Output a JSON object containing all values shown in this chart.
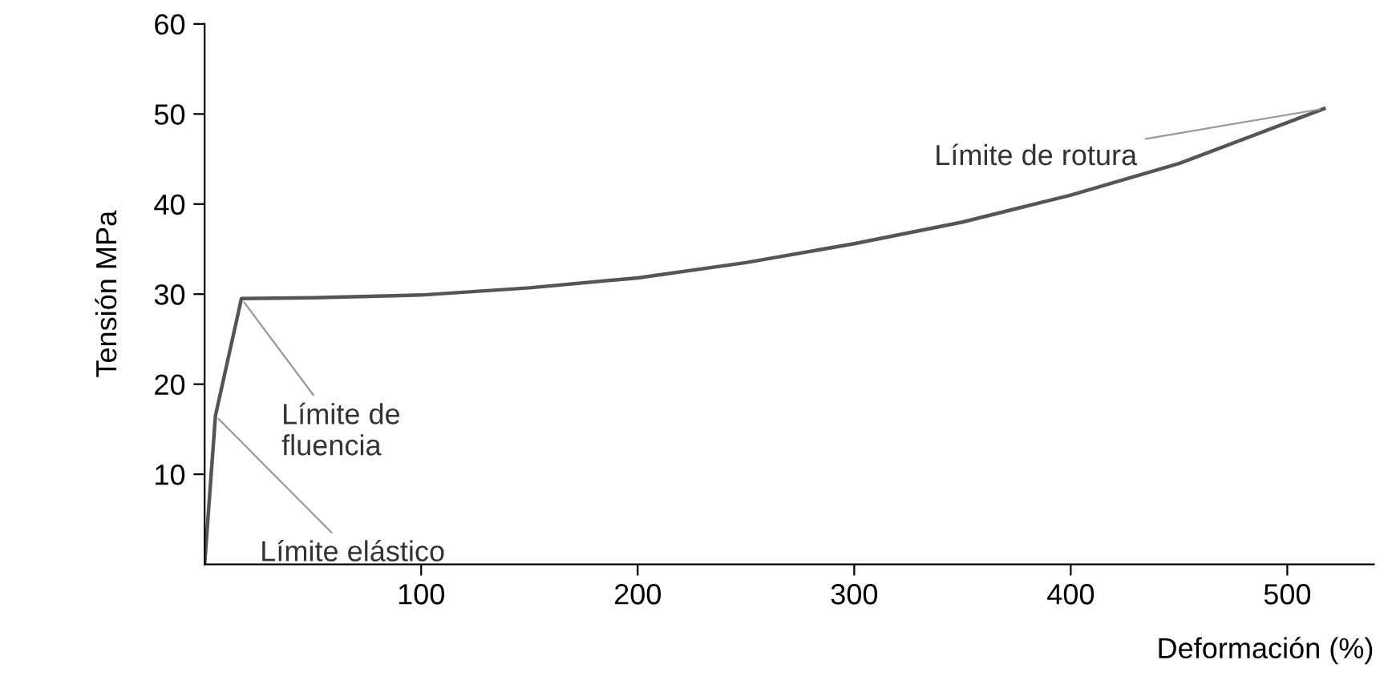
{
  "chart_data": {
    "type": "line",
    "xlabel": "Deformación (%)",
    "ylabel": "Tensión MPa",
    "x": [
      0,
      5,
      17,
      50,
      100,
      150,
      200,
      250,
      300,
      350,
      400,
      450,
      517
    ],
    "series": [
      {
        "color": "#555555",
        "values": [
          0,
          16.5,
          29.5,
          29.6,
          29.9,
          30.7,
          31.8,
          33.5,
          35.6,
          38,
          41,
          44.5,
          50.6
        ]
      }
    ],
    "xlim": [
      0,
      540
    ],
    "xticks": [
      100,
      200,
      300,
      400,
      500
    ],
    "ylim": [
      0,
      60
    ],
    "yticks": [
      10,
      20,
      30,
      40,
      50,
      60
    ],
    "grid": false,
    "legend": false,
    "marker": "none",
    "line_style": "solid",
    "annotations": [
      {
        "text": "Límite de rotura",
        "x": 517,
        "y": 50.6
      },
      {
        "text": "Límite de\nfluencia",
        "x": 17,
        "y": 29.5
      },
      {
        "text": "Límite elástico",
        "x": 5,
        "y": 16.5
      }
    ]
  }
}
